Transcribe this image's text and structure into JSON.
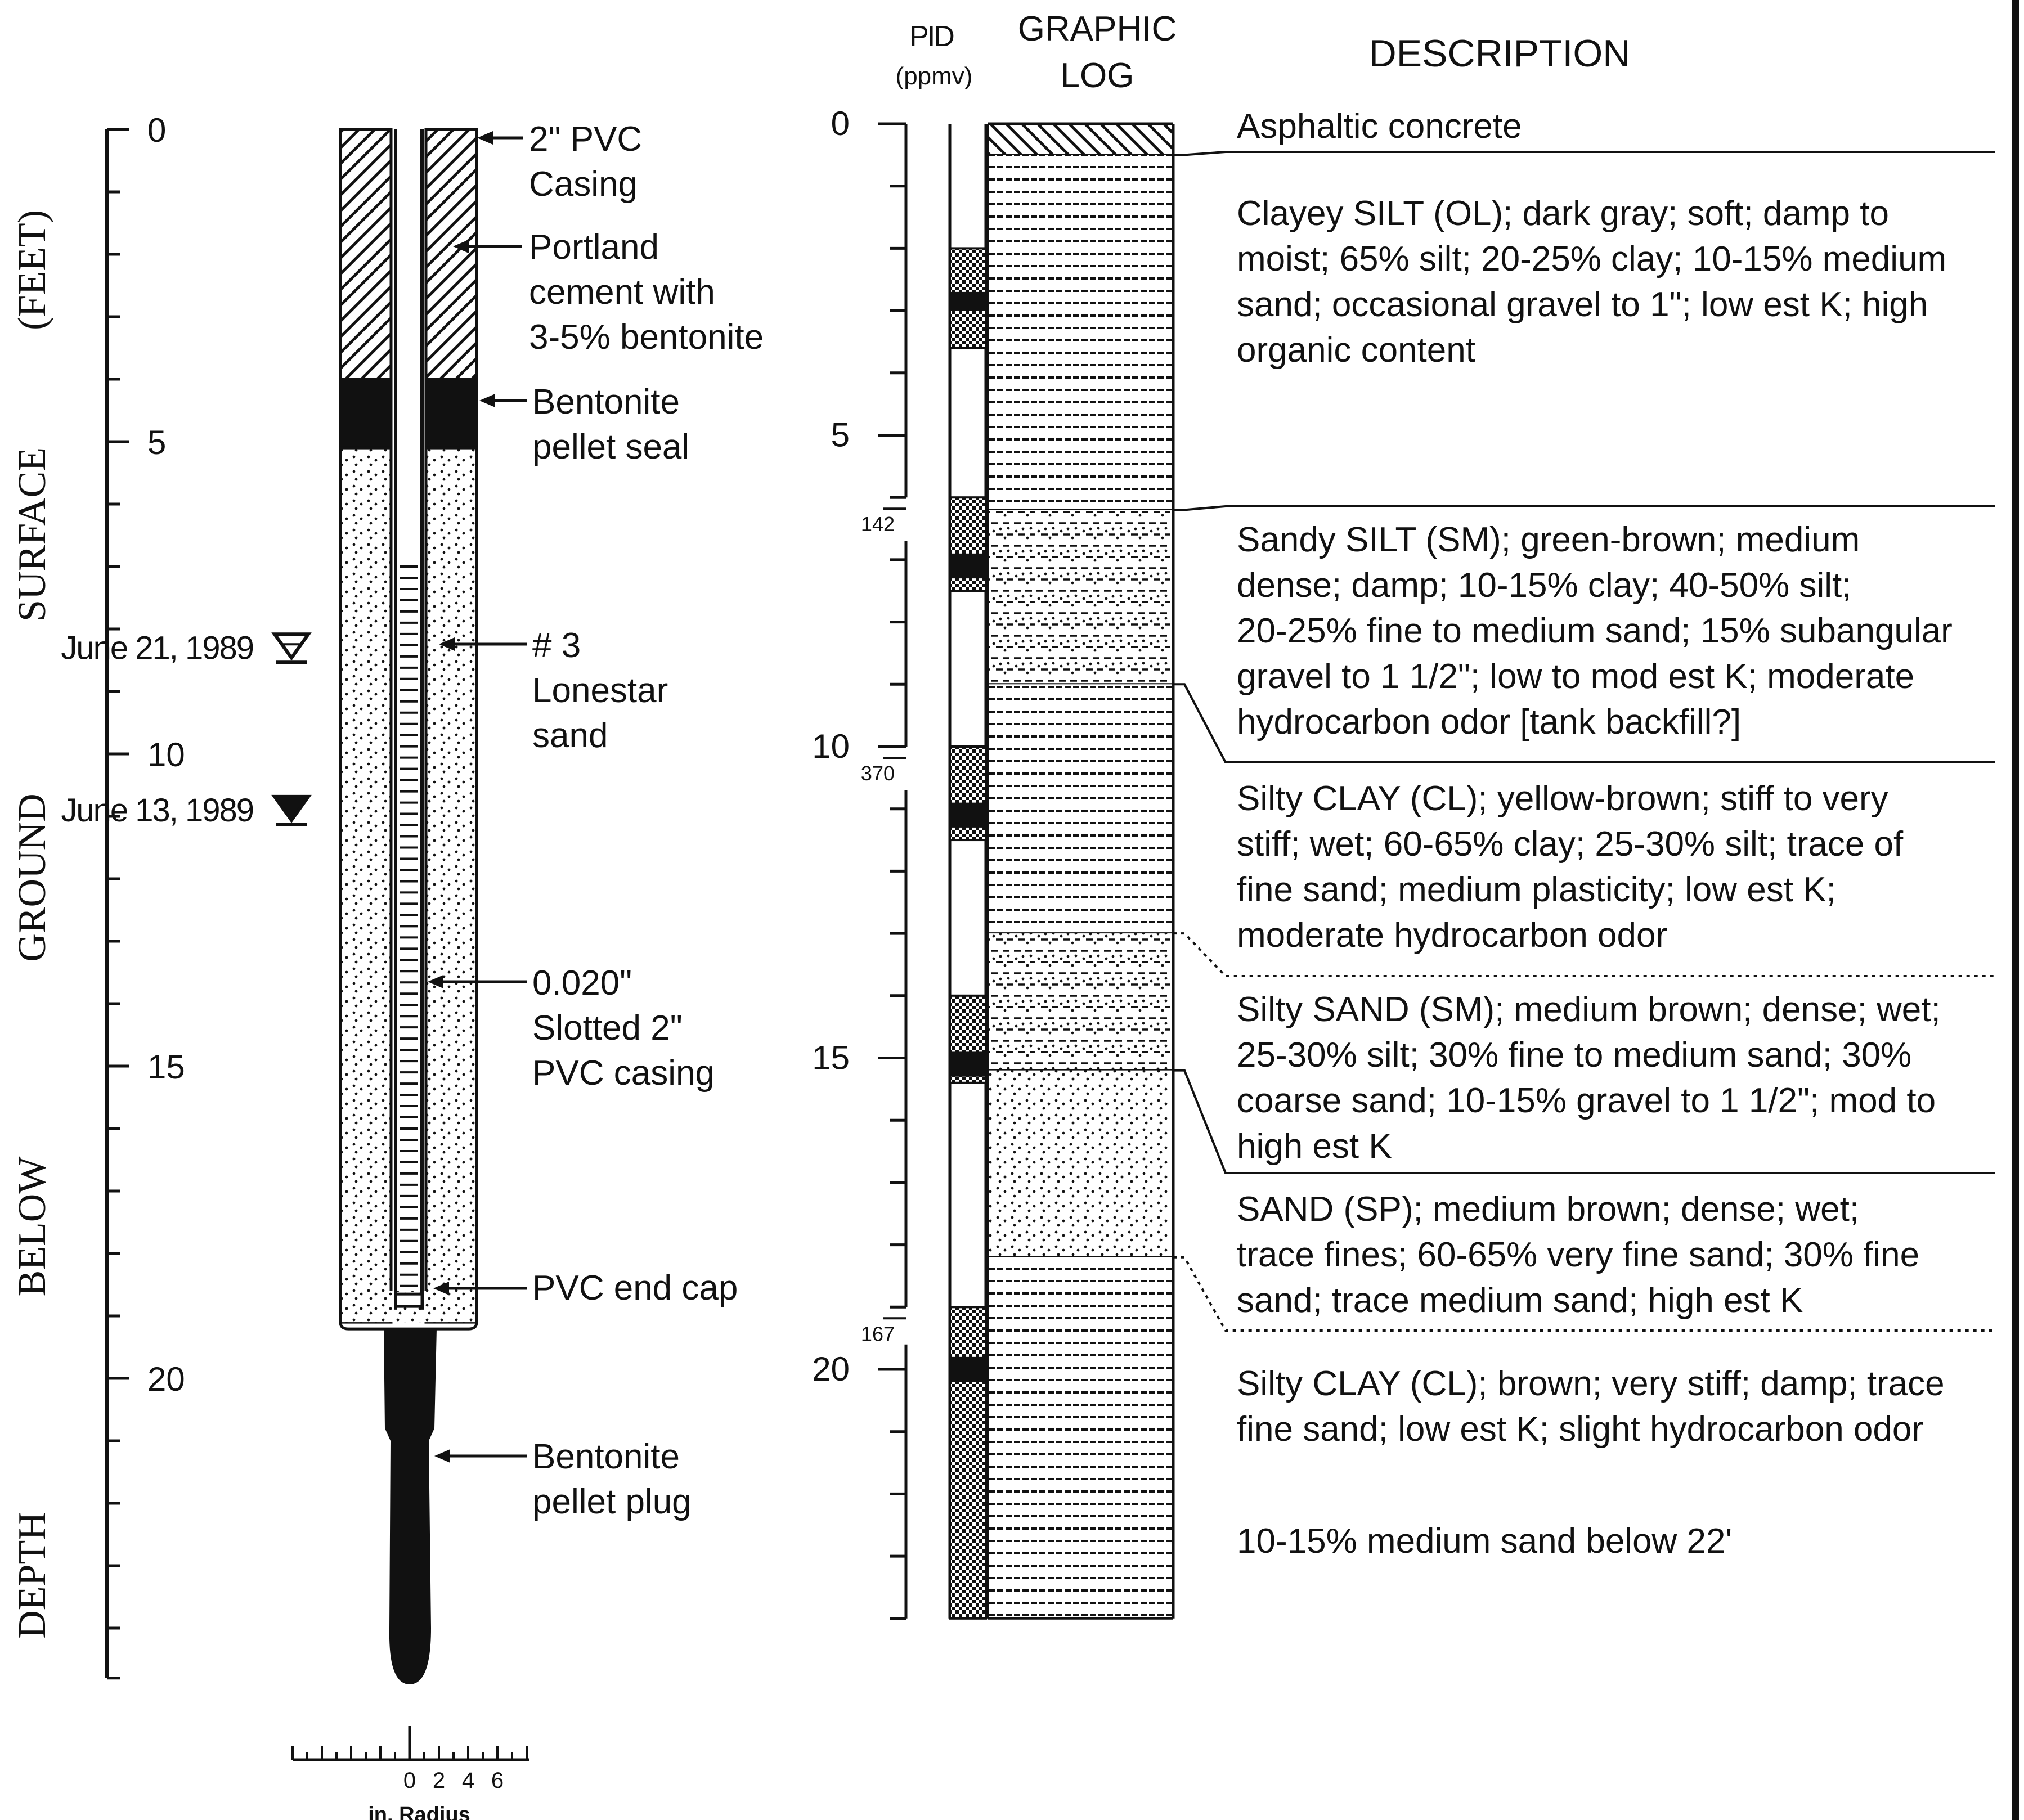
{
  "colors": {
    "ink": "#111111",
    "paper": "#ffffff"
  },
  "depth_axis": {
    "title_words": [
      "DEPTH",
      "BELOW",
      "GROUND",
      "SURFACE",
      "(FEET)"
    ],
    "major_ticks": [
      0,
      5,
      10,
      15,
      20
    ],
    "minor_tick_step": 1,
    "range": [
      0,
      24
    ]
  },
  "water_levels": [
    {
      "date": "June 21, 1989",
      "depth": 8.3,
      "symbol": "open-triangle-icon"
    },
    {
      "date": "June 13, 1989",
      "depth": 10.9,
      "symbol": "filled-triangle-icon"
    }
  ],
  "well_labels": [
    {
      "lines": [
        "2\" PVC",
        "Casing"
      ]
    },
    {
      "lines": [
        "Portland",
        "cement with",
        "3-5% bentonite"
      ]
    },
    {
      "lines": [
        "Bentonite",
        "pellet seal"
      ]
    },
    {
      "lines": [
        "# 3",
        "Lonestar",
        "sand"
      ]
    },
    {
      "lines": [
        "0.020\"",
        "Slotted 2\"",
        "PVC casing"
      ]
    },
    {
      "lines": [
        "PVC end cap"
      ]
    },
    {
      "lines": [
        "Bentonite",
        "pellet plug"
      ]
    }
  ],
  "scale_bar": {
    "ticks": [
      "0",
      "2",
      "4",
      "6"
    ],
    "label": "in. Radius"
  },
  "pid": {
    "header_line1": "PID",
    "header_line2": "(ppmv)",
    "readings": [
      {
        "depth": 6.0,
        "value": "142"
      },
      {
        "depth": 10.0,
        "value": "370"
      },
      {
        "depth": 19.0,
        "value": "167"
      }
    ],
    "axis_ticks": [
      0,
      5,
      10,
      15,
      20
    ]
  },
  "graphic_log": {
    "header_line1": "GRAPHIC",
    "header_line2": "LOG"
  },
  "description": {
    "header": "DESCRIPTION",
    "layers": [
      {
        "lines": [
          "Asphaltic concrete"
        ]
      },
      {
        "lines": [
          "Clayey SILT (OL); dark gray; soft; damp to",
          "moist; 65% silt; 20-25% clay; 10-15% medium",
          "sand; occasional gravel to 1\"; low est K; high",
          "organic content"
        ]
      },
      {
        "lines": [
          "Sandy SILT (SM); green-brown; medium",
          "dense; damp; 10-15% clay; 40-50% silt;",
          "20-25% fine to medium sand; 15% subangular",
          "gravel to 1 1/2\"; low to mod est K; moderate",
          "hydrocarbon odor [tank backfill?]"
        ]
      },
      {
        "lines": [
          "Silty CLAY (CL); yellow-brown; stiff to very",
          "stiff; wet; 60-65% clay; 25-30% silt; trace of",
          "fine sand; medium plasticity; low est K;",
          "moderate hydrocarbon odor"
        ]
      },
      {
        "lines": [
          "Silty SAND (SM); medium brown; dense; wet;",
          "25-30% silt; 30% fine to medium sand; 30%",
          "coarse sand; 10-15% gravel to 1 1/2\"; mod to",
          "high est K"
        ]
      },
      {
        "lines": [
          "SAND (SP); medium brown; dense; wet;",
          "trace fines; 60-65% very fine sand; 30% fine",
          "sand; trace medium sand; high est K"
        ]
      },
      {
        "lines": [
          "Silty CLAY (CL); brown; very stiff; damp; trace",
          "fine sand; low est K; slight hydrocarbon odor"
        ]
      },
      {
        "lines": [
          "10-15% medium sand below 22'"
        ]
      }
    ]
  }
}
